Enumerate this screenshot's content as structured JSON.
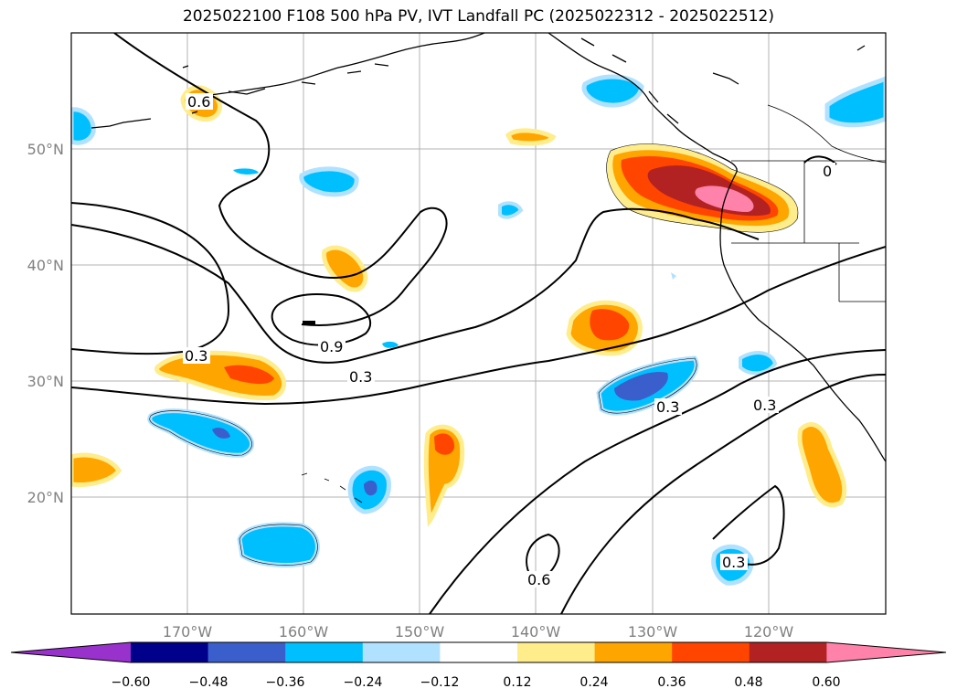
{
  "title": "2025022100 F108 500 hPa PV, IVT Landfall PC (2025022312 - 2025022512)",
  "map": {
    "lat_labels": [
      "50°N",
      "40°N",
      "30°N",
      "20°N"
    ],
    "lon_labels": [
      "170°W",
      "160°W",
      "150°W",
      "140°W",
      "130°W",
      "120°W"
    ],
    "contour_labels": [
      "0.6",
      "0.3",
      "0.9",
      "0.3",
      "0.3",
      "0.3",
      "0.6",
      "0.3",
      "0"
    ]
  },
  "colorbar": {
    "ticks": [
      "−0.60",
      "−0.48",
      "−0.36",
      "−0.24",
      "−0.12",
      "0.12",
      "0.24",
      "0.36",
      "0.48",
      "0.60"
    ],
    "colors": [
      "#9932cc",
      "#00008b",
      "#3a5fcd",
      "#00bfff",
      "#b0e2ff",
      "#ffffff",
      "#ffec8b",
      "#ffa500",
      "#ff4500",
      "#b22222",
      "#ff82ab"
    ]
  }
}
